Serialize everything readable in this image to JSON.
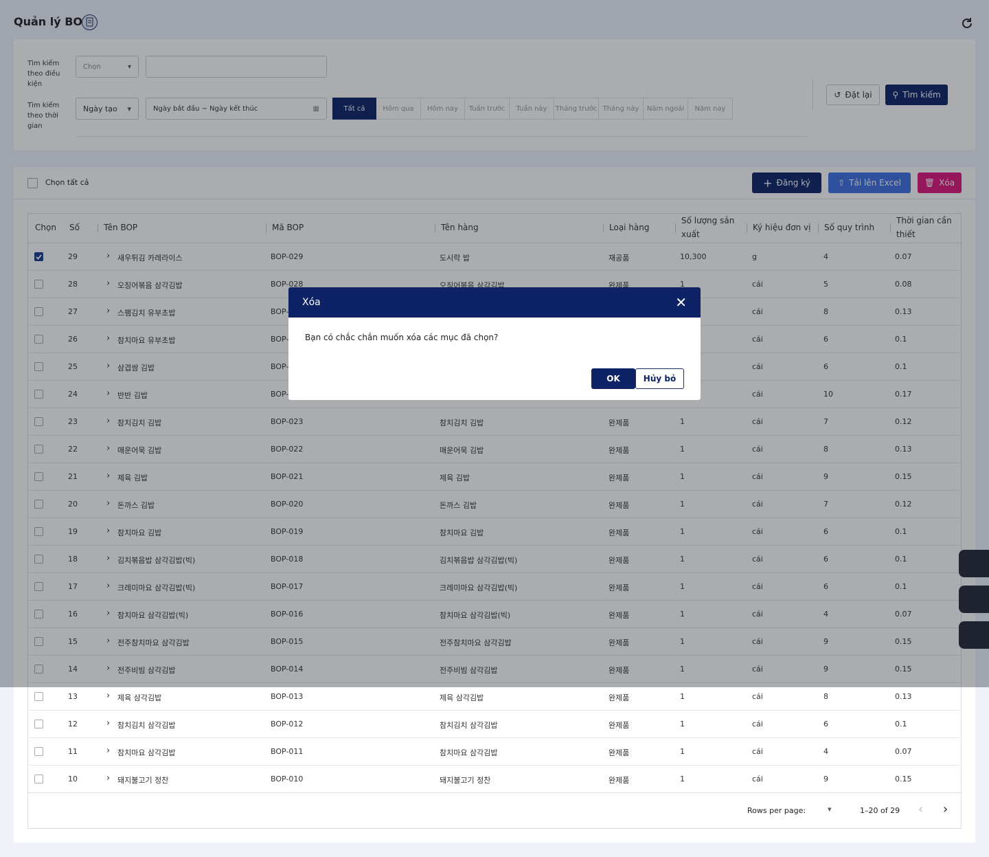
{
  "header": {
    "title": "Quản lý BOP"
  },
  "filters": {
    "condition_label": "Tìm kiếm theo điều kiện",
    "condition_select": "Chọn",
    "time_label": "Tìm kiếm theo thời gian",
    "time_select": "Ngày tạo",
    "date_range": "Ngày bắt đầu ~ Ngày kết thúc",
    "quick_ranges": [
      "Tất cả",
      "Hôm qua",
      "Hôm nay",
      "Tuần trước",
      "Tuần này",
      "Tháng trước",
      "Tháng này",
      "Năm ngoái",
      "Năm nay"
    ],
    "reset": "Đặt lại",
    "search": "Tìm kiếm"
  },
  "toolbar": {
    "select_all": "Chọn tất cả",
    "register": "Đăng ký",
    "upload": "Tải lên Excel",
    "delete": "Xóa"
  },
  "table": {
    "columns": [
      "Chọn",
      "Số",
      "Tên BOP",
      "Mã BOP",
      "Tên hàng",
      "Loại hàng",
      "Số lượng sản xuất",
      "Ký hiệu đơn vị",
      "Số quy trình",
      "Thời gian cần thiết"
    ],
    "rows": [
      [
        "29",
        "새우튀김 카레라이스",
        "BOP-029",
        "도시락 밥",
        "재공품",
        "10,300",
        "g",
        "4",
        "0.07"
      ],
      [
        "28",
        "오징어볶음 삼각김밥",
        "BOP-028",
        "오징어볶음 삼각김밥",
        "완제품",
        "1",
        "cái",
        "5",
        "0.08"
      ],
      [
        "27",
        "스팸김치 유부초밥",
        "BOP-027",
        "스팸김치 유부초밥",
        "완제품",
        "1",
        "cái",
        "8",
        "0.13"
      ],
      [
        "26",
        "참치마요 유부초밥",
        "BOP-026",
        "참치마요 유부초밥",
        "완제품",
        "1",
        "cái",
        "6",
        "0.1"
      ],
      [
        "25",
        "삼겹쌈 김밥",
        "BOP-025",
        "삼겹쌈 김밥",
        "완제품",
        "1",
        "cái",
        "6",
        "0.1"
      ],
      [
        "24",
        "반반 김밥",
        "BOP-024",
        "반반 김밥",
        "완제품",
        "1",
        "cái",
        "10",
        "0.17"
      ],
      [
        "23",
        "참치김치 김밥",
        "BOP-023",
        "참치김치 김밥",
        "완제품",
        "1",
        "cái",
        "7",
        "0.12"
      ],
      [
        "22",
        "매운어묵 김밥",
        "BOP-022",
        "매운어묵 김밥",
        "완제품",
        "1",
        "cái",
        "8",
        "0.13"
      ],
      [
        "21",
        "제육 김밥",
        "BOP-021",
        "제육 김밥",
        "완제품",
        "1",
        "cái",
        "9",
        "0.15"
      ],
      [
        "20",
        "돈까스 김밥",
        "BOP-020",
        "돈까스 김밥",
        "완제품",
        "1",
        "cái",
        "7",
        "0.12"
      ],
      [
        "19",
        "참치마요 김밥",
        "BOP-019",
        "참치마요 김밥",
        "완제품",
        "1",
        "cái",
        "6",
        "0.1"
      ],
      [
        "18",
        "김치볶음밥 삼각김밥(빅)",
        "BOP-018",
        "김치볶음밥 삼각김밥(빅)",
        "완제품",
        "1",
        "cái",
        "6",
        "0.1"
      ],
      [
        "17",
        "크레미마요 삼각김밥(빅)",
        "BOP-017",
        "크레미마요 삼각김밥(빅)",
        "완제품",
        "1",
        "cái",
        "6",
        "0.1"
      ],
      [
        "16",
        "참치마요 삼각김밥(빅)",
        "BOP-016",
        "참치마요 삼각김밥(빅)",
        "완제품",
        "1",
        "cái",
        "4",
        "0.07"
      ],
      [
        "15",
        "전주참치마요 삼각김밥",
        "BOP-015",
        "전주참치마요 삼각김밥",
        "완제품",
        "1",
        "cái",
        "9",
        "0.15"
      ],
      [
        "14",
        "전주비빔 삼각김밥",
        "BOP-014",
        "전주비빔 삼각김밥",
        "완제품",
        "1",
        "cái",
        "9",
        "0.15"
      ],
      [
        "13",
        "제육 삼각김밥",
        "BOP-013",
        "제육 삼각김밥",
        "완제품",
        "1",
        "cái",
        "8",
        "0.13"
      ],
      [
        "12",
        "참치김치 삼각김밥",
        "BOP-012",
        "참치김치 삼각김밥",
        "완제품",
        "1",
        "cái",
        "6",
        "0.1"
      ],
      [
        "11",
        "참치마요 삼각김밥",
        "BOP-011",
        "참치마요 삼각김밥",
        "완제품",
        "1",
        "cái",
        "4",
        "0.07"
      ],
      [
        "10",
        "돼지불고기 정찬",
        "BOP-010",
        "돼지불고기 정찬",
        "완제품",
        "1",
        "cái",
        "9",
        "0.15"
      ]
    ],
    "checked": [
      true,
      false,
      false,
      false,
      false,
      false,
      false,
      false,
      false,
      false,
      false,
      false,
      false,
      false,
      false,
      false,
      false,
      false,
      false,
      false
    ]
  },
  "pagination": {
    "rows_per_page": "Rows per page:",
    "range": "1–20 of 29"
  },
  "modal": {
    "title": "Xóa",
    "message": "Bạn có chắc chắn muốn xóa các mục đã chọn?",
    "ok": "OK",
    "cancel": "Hủy bỏ"
  }
}
